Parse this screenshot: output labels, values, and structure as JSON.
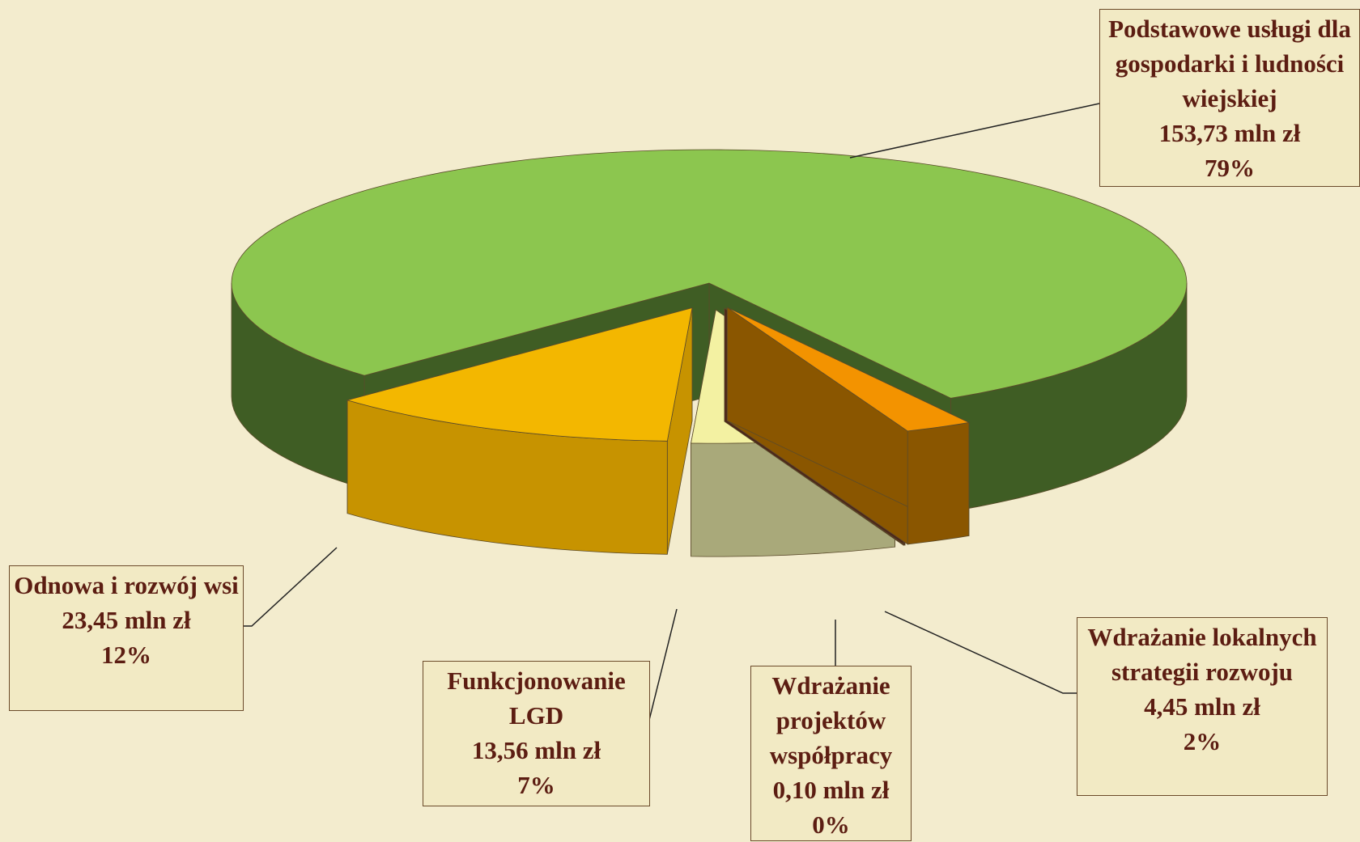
{
  "chart_data": {
    "type": "pie3d",
    "categories": [
      "Podstawowe usługi dla gospodarki i ludności wiejskiej",
      "Odnowa i rozwój wsi",
      "Funkcjonowanie LGD",
      "Wdrażanie projektów współpracy",
      "Wdrażanie lokalnych strategii rozwoju"
    ],
    "values": [
      153.73,
      23.45,
      13.56,
      0.1,
      4.45
    ],
    "value_labels": [
      "153,73 mln zł",
      "23,45 mln zł",
      "13,56 mln zł",
      "0,10 mln zł",
      "4,45 mln zł"
    ],
    "percent_labels": [
      "79%",
      "12%",
      "7%",
      "0%",
      "2%"
    ],
    "colors": [
      "#8cc64f",
      "#f3b700",
      "#f3f1a2",
      "#6e3b2a",
      "#f39300"
    ],
    "side_colors": [
      "#3f5d24",
      "#c79300",
      "#a9a97a",
      "#4d2519",
      "#8a5600"
    ]
  }
}
